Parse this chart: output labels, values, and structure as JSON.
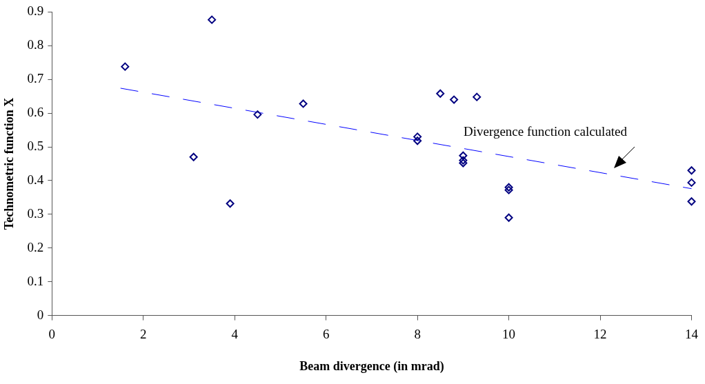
{
  "chart_data": {
    "type": "scatter",
    "xlabel": "Beam divergence (in mrad)",
    "ylabel": "Technometric function X",
    "xlim": [
      0,
      14
    ],
    "xticks": [
      0,
      2,
      4,
      6,
      8,
      10,
      12,
      14
    ],
    "ylim": [
      0,
      0.9
    ],
    "yticks": [
      0,
      0.1,
      0.2,
      0.3,
      0.4,
      0.5,
      0.6,
      0.7,
      0.8,
      0.9
    ],
    "grid": false,
    "legend": false,
    "marker": "diamond",
    "series": [
      {
        "color": "#000080",
        "x": [
          1.6,
          3.1,
          3.5,
          3.9,
          4.5,
          5.5,
          8,
          8,
          8.5,
          8.8,
          9.3,
          9,
          9,
          9,
          10,
          10,
          10,
          14,
          14,
          14
        ],
        "values": [
          0.738,
          0.47,
          0.877,
          0.332,
          0.596,
          0.628,
          0.53,
          0.518,
          0.658,
          0.64,
          0.648,
          0.474,
          0.46,
          0.452,
          0.38,
          0.372,
          0.29,
          0.43,
          0.394,
          0.338
        ]
      },
      {
        "type": "line",
        "line_style": "dashed",
        "marker": "none",
        "color": "#0000ff",
        "x": [
          1.5,
          14
        ],
        "values": [
          0.674,
          0.376
        ]
      }
    ],
    "annotations": [
      "Divergence function calculated"
    ]
  }
}
